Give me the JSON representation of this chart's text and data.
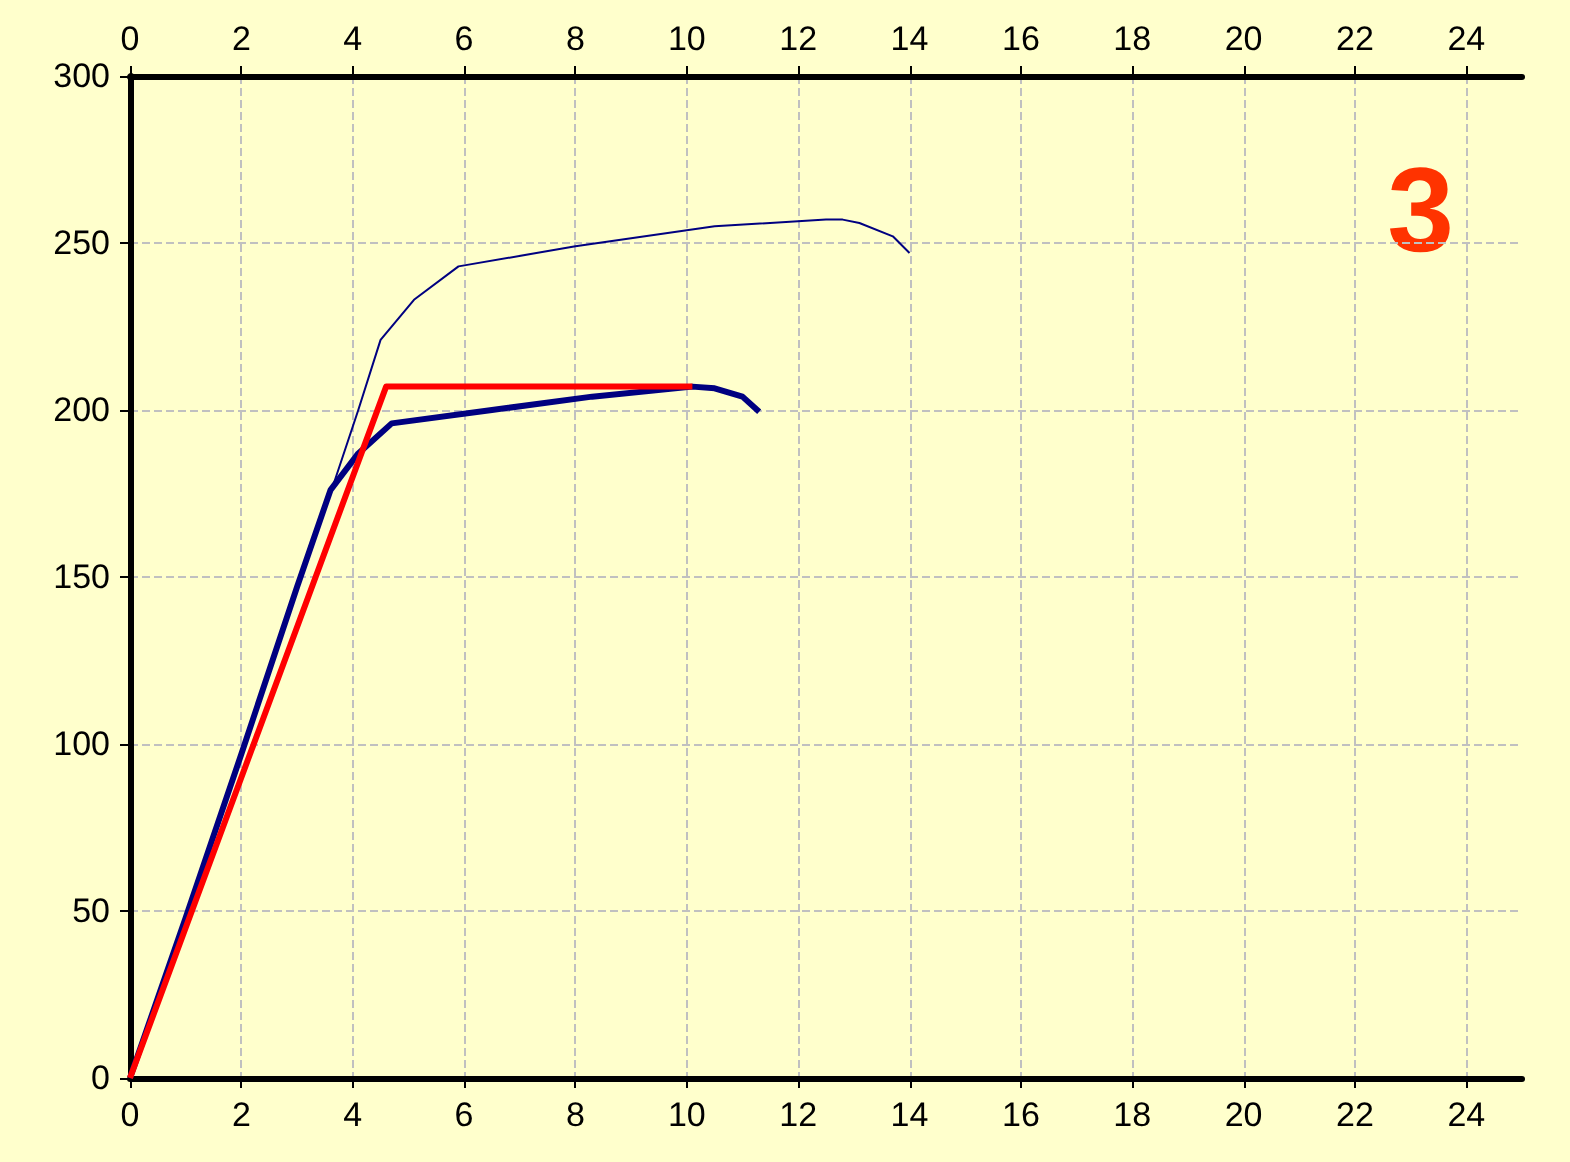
{
  "chart_data": {
    "type": "line",
    "xlim": [
      0,
      25
    ],
    "xticks": [
      0,
      2,
      4,
      6,
      8,
      10,
      12,
      14,
      16,
      18,
      20,
      22,
      24
    ],
    "x2lim": [
      0,
      25
    ],
    "x2ticks": [
      0,
      2,
      4,
      6,
      8,
      10,
      12,
      14,
      16,
      18,
      20,
      22,
      24
    ],
    "ylim": [
      0,
      300
    ],
    "yticks": [
      0,
      50,
      100,
      150,
      200,
      250,
      300
    ],
    "grid": true,
    "marker": "none",
    "line_style": "solid",
    "annotations": [
      "3"
    ],
    "series": [
      {
        "color": "#000080",
        "x": [
          0,
          1,
          2,
          3,
          3.6,
          4.1,
          4.5,
          5.1,
          5.9,
          8,
          10.5,
          12.5,
          12.8,
          13.1,
          13.7,
          14.0
        ],
        "values": [
          0,
          48,
          97,
          148,
          175,
          200,
          221,
          233,
          243,
          249,
          255,
          257,
          257,
          256,
          252,
          247
        ]
      },
      {
        "color": "#000080",
        "x": [
          0,
          1,
          2,
          3,
          3.6,
          4.1,
          4.7,
          6.5,
          8.3,
          10.1,
          10.5,
          11.0,
          11.3
        ],
        "values": [
          0,
          48,
          97,
          147,
          176,
          187,
          196,
          200,
          204,
          207,
          206.5,
          204,
          199.5
        ]
      },
      {
        "color": "#ff0000",
        "x": [
          0,
          4.6,
          10.1
        ],
        "values": [
          0,
          207,
          207
        ]
      }
    ]
  }
}
